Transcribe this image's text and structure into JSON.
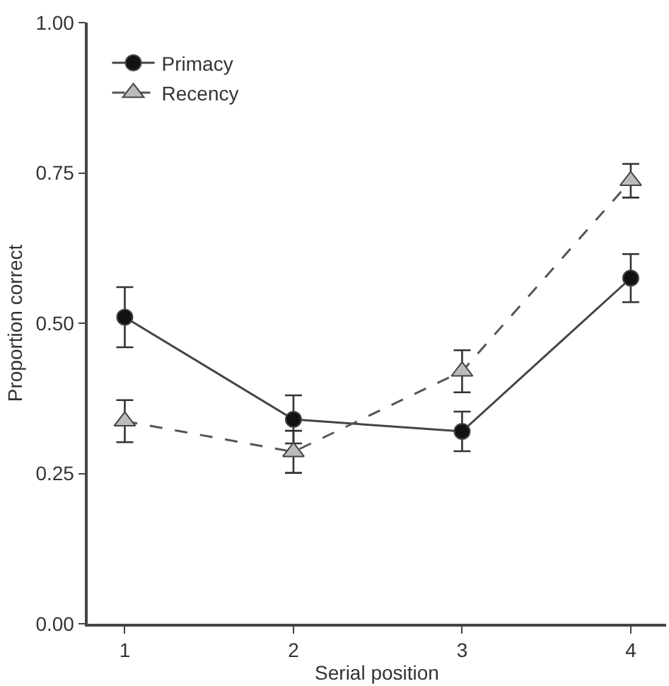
{
  "chart_data": {
    "type": "line",
    "xlabel": "Serial position",
    "ylabel": "Proportion correct",
    "x": [
      1,
      2,
      3,
      4
    ],
    "series": [
      {
        "name": "Primacy",
        "color": "#111111",
        "marker": "circle",
        "line_style": "solid",
        "values": [
          0.51,
          0.34,
          0.32,
          0.575
        ],
        "errors": [
          0.05,
          0.04,
          0.033,
          0.04
        ]
      },
      {
        "name": "Recency",
        "color": "#bbbbbb",
        "marker": "triangle",
        "line_style": "dashed",
        "values": [
          0.337,
          0.286,
          0.42,
          0.737
        ],
        "errors": [
          0.035,
          0.035,
          0.035,
          0.028
        ]
      }
    ],
    "xlim": [
      0.78,
      4.21
    ],
    "xticks": [
      1,
      2,
      3,
      4
    ],
    "ylim": [
      0,
      1
    ],
    "yticks": [
      {
        "value": 0,
        "label": "0.00"
      },
      {
        "value": 0.25,
        "label": "0.25"
      },
      {
        "value": 0.5,
        "label": "0.50"
      },
      {
        "value": 0.75,
        "label": "0.75"
      },
      {
        "value": 1,
        "label": "1.00"
      }
    ],
    "grid": false,
    "legend": "top left"
  }
}
